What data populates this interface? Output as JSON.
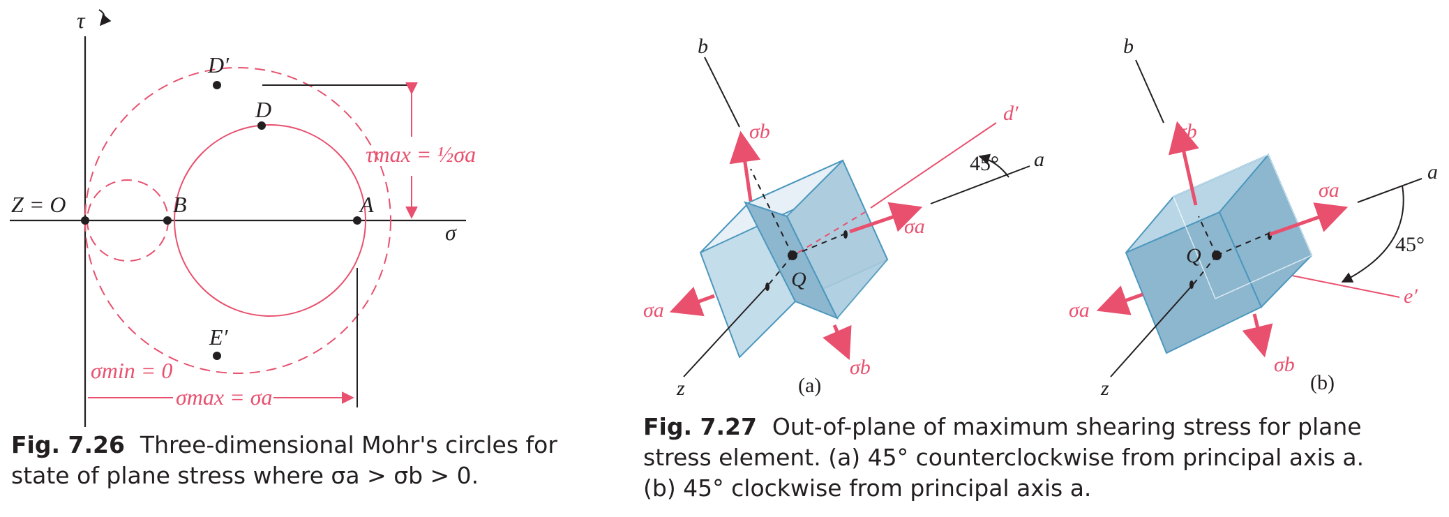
{
  "colors": {
    "pink": "#e8506e",
    "ink": "#231f20",
    "face_light": "#d9e9f2",
    "face_mid": "#b9d6e6",
    "face_dark": "#8cb7cf",
    "edge": "#4c97bd"
  },
  "fig26": {
    "axis_tau": "τ",
    "axis_sigma": "σ",
    "label_ZO": "Z = O",
    "label_B": "B",
    "label_A": "A",
    "label_D": "D",
    "label_Dprime": "D′",
    "label_Eprime": "E′",
    "tau_max": "τmax = ½σa",
    "sigma_min": "σmin = 0",
    "sigma_max": "σmax = σa",
    "caption_num": "Fig. 7.26",
    "caption_line1": "Three-dimensional Mohr's circles for",
    "caption_line2": "state of plane stress where σa > σb > 0."
  },
  "fig27": {
    "a": {
      "axis_b": "b",
      "axis_a": "a",
      "axis_z": "z",
      "axis_dprime": "d′",
      "angle": "45°",
      "point_Q": "Q",
      "sigma_a": "σa",
      "sigma_b": "σb",
      "sub": "(a)"
    },
    "b": {
      "axis_b": "b",
      "axis_a": "a",
      "axis_z": "z",
      "axis_eprime": "e′",
      "angle": "45°",
      "point_Q": "Q",
      "sigma_a": "σa",
      "sigma_b": "σb",
      "sub": "(b)"
    },
    "caption_num": "Fig. 7.27",
    "caption_line1": "Out-of-plane of maximum shearing stress for plane",
    "caption_line2": "stress element. (a) 45° counterclockwise from principal axis a.",
    "caption_line3": "(b) 45° clockwise from principal axis a."
  }
}
